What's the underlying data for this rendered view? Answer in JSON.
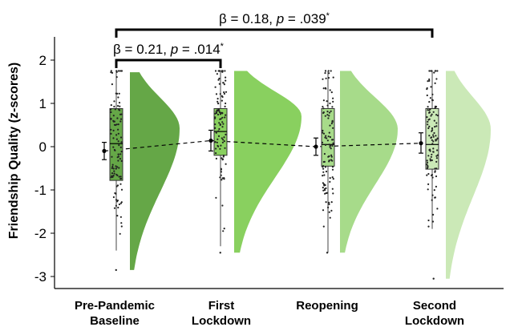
{
  "chart_data": {
    "type": "raincloud",
    "ylabel": "Friendship Quality (z-scores)",
    "ylim": [
      -3.2,
      2.3
    ],
    "yticks": [
      2,
      1,
      0,
      -1,
      -2,
      -3
    ],
    "ytick_labels": [
      "2",
      "1",
      "0",
      "-1",
      "-2",
      "-3"
    ],
    "groups": [
      {
        "label_lines": [
          "Pre-Pandemic",
          "Baseline"
        ],
        "color": "#65a747",
        "q1": -0.78,
        "median": 0.07,
        "q3": 0.88,
        "whisker_low": -2.4,
        "whisker_high": 1.72,
        "data_min": -2.85,
        "data_max": 1.75,
        "mean": -0.1,
        "ci": [
          -0.3,
          0.1
        ],
        "seed": 11
      },
      {
        "label_lines": [
          "First",
          "Lockdown"
        ],
        "color": "#89d05f",
        "q1": -0.2,
        "median": 0.35,
        "q3": 0.88,
        "whisker_low": -2.3,
        "whisker_high": 1.75,
        "data_min": -2.45,
        "data_max": 1.75,
        "mean": 0.14,
        "ci": [
          -0.1,
          0.38
        ],
        "seed": 23
      },
      {
        "label_lines": [
          "Reopening"
        ],
        "color": "#a7db8a",
        "q1": -0.45,
        "median": 0.05,
        "q3": 0.88,
        "whisker_low": -2.45,
        "whisker_high": 1.75,
        "data_min": -2.45,
        "data_max": 1.75,
        "mean": 0.0,
        "ci": [
          -0.2,
          0.2
        ],
        "seed": 37
      },
      {
        "label_lines": [
          "Second",
          "Lockdown"
        ],
        "color": "#cbe9b7",
        "q1": -0.52,
        "median": 0.05,
        "q3": 0.88,
        "whisker_low": -1.9,
        "whisker_high": 1.75,
        "data_min": -3.05,
        "data_max": 1.75,
        "mean": 0.08,
        "ci": [
          -0.15,
          0.32
        ],
        "seed": 53
      }
    ],
    "comparisons": [
      {
        "from": 0,
        "to": 3,
        "label": "β = 0.18, p = .039*",
        "text_parts": [
          "β = 0.18, ",
          "p",
          " = .039",
          "*"
        ]
      },
      {
        "from": 0,
        "to": 1,
        "label": "β = 0.21, p = .014*",
        "text_parts": [
          "β = 0.21, ",
          "p",
          " = .014",
          "*"
        ]
      }
    ],
    "mean_line": "dashed",
    "grid": false
  }
}
